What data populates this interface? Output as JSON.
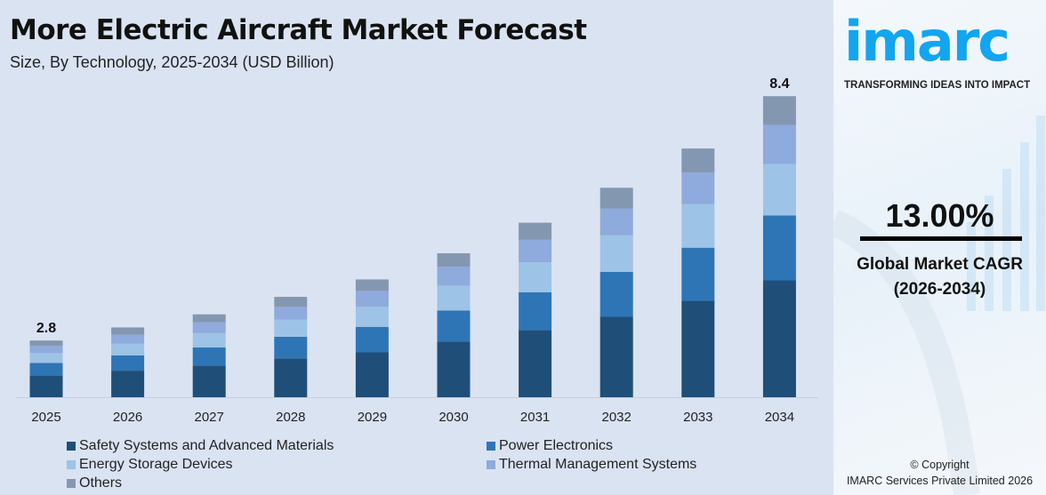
{
  "header": {
    "title": "More Electric Aircraft Market Forecast",
    "subtitle": "Size, By Technology, 2025-2034 (USD Billion)"
  },
  "chart_data": {
    "type": "bar",
    "stacked": true,
    "title": "More Electric Aircraft Market Forecast",
    "subtitle": "Size, By Technology, 2025-2034 (USD Billion)",
    "categories": [
      "2025",
      "2026",
      "2027",
      "2028",
      "2029",
      "2030",
      "2031",
      "2032",
      "2033",
      "2034"
    ],
    "series": [
      {
        "name": "Safety Systems and Advanced Materials",
        "color": "#1f4e79",
        "values": [
          1.07,
          1.18,
          1.3,
          1.47,
          1.6,
          1.85,
          2.12,
          2.42,
          2.79,
          3.26
        ]
      },
      {
        "name": "Power Electronics",
        "color": "#2e75b6",
        "values": [
          0.62,
          0.68,
          0.74,
          0.82,
          0.91,
          1.04,
          1.19,
          1.35,
          1.54,
          1.81
        ]
      },
      {
        "name": "Energy Storage Devices",
        "color": "#9dc3e6",
        "values": [
          0.49,
          0.52,
          0.59,
          0.65,
          0.72,
          0.83,
          0.94,
          1.1,
          1.26,
          1.44
        ]
      },
      {
        "name": "Thermal Management Systems",
        "color": "#8faadc",
        "values": [
          0.35,
          0.4,
          0.44,
          0.48,
          0.56,
          0.63,
          0.71,
          0.81,
          0.92,
          1.09
        ]
      },
      {
        "name": "Others",
        "color": "#8497b0",
        "values": [
          0.27,
          0.32,
          0.33,
          0.38,
          0.41,
          0.45,
          0.54,
          0.62,
          0.69,
          0.8
        ]
      }
    ],
    "data_labels": [
      {
        "category": "2025",
        "text": "2.8"
      },
      {
        "category": "2034",
        "text": "8.4"
      }
    ],
    "grid": false,
    "legend_position": "bottom"
  },
  "side_panel": {
    "logo": "imarc",
    "tagline": "TRANSFORMING IDEAS INTO IMPACT",
    "cagr_value": "13.00%",
    "cagr_label": "Global Market CAGR",
    "cagr_period": "(2026-2034)",
    "copyright_line1": "© Copyright",
    "copyright_line2": "IMARC Services Private Limited 2026",
    "logo_color": "#12a5f0"
  }
}
